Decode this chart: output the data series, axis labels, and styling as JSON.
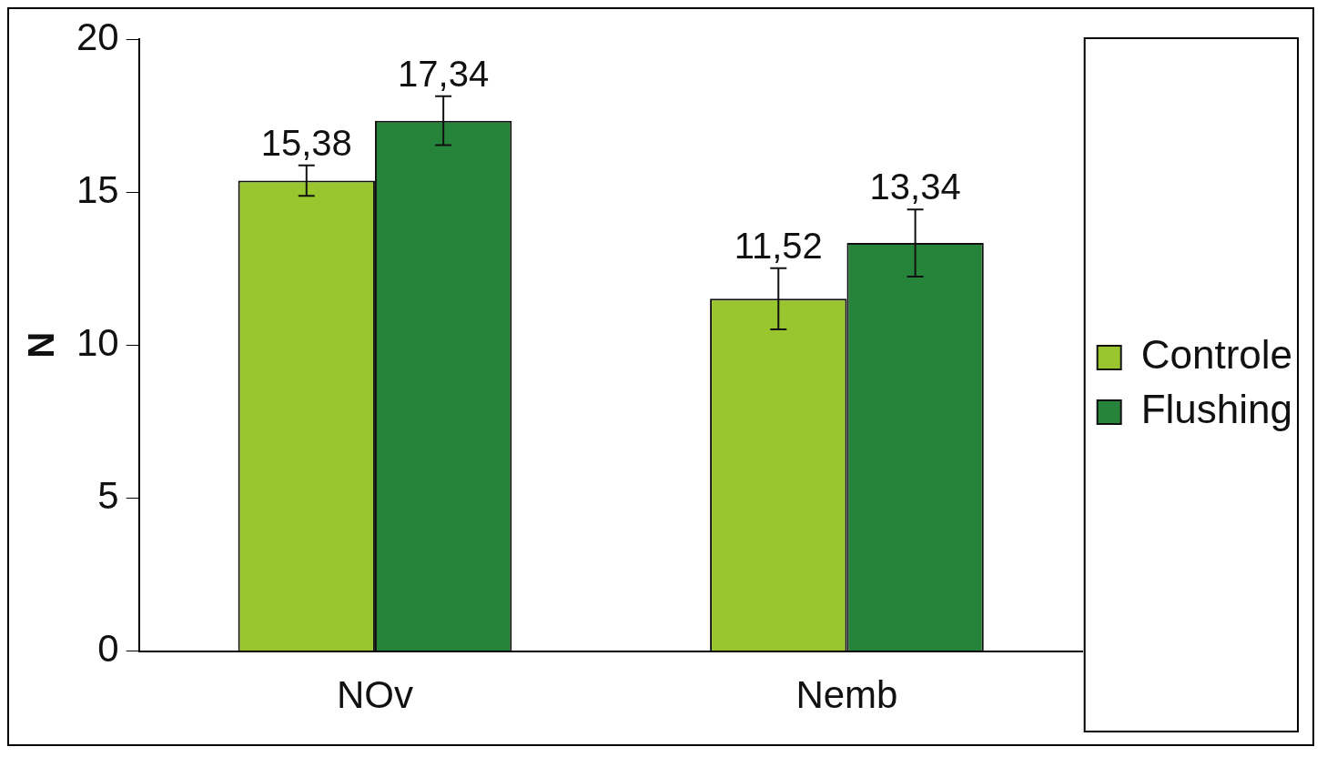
{
  "chart_data": {
    "type": "bar",
    "ylabel": "N",
    "categories": [
      "NOv",
      "Nemb"
    ],
    "series": [
      {
        "name": "Controle",
        "color": "#99c62e",
        "values": [
          15.38,
          11.52
        ],
        "errors": [
          0.5,
          1.0
        ],
        "value_labels": [
          "15,38",
          "11,52"
        ]
      },
      {
        "name": "Flushing",
        "color": "#26843a",
        "values": [
          17.34,
          13.34
        ],
        "errors": [
          0.8,
          1.1
        ],
        "value_labels": [
          "17,34",
          "13,34"
        ]
      }
    ],
    "ylim": [
      0,
      20
    ],
    "yticks": [
      0,
      5,
      10,
      15,
      20
    ],
    "grid": false,
    "legend": "right"
  }
}
